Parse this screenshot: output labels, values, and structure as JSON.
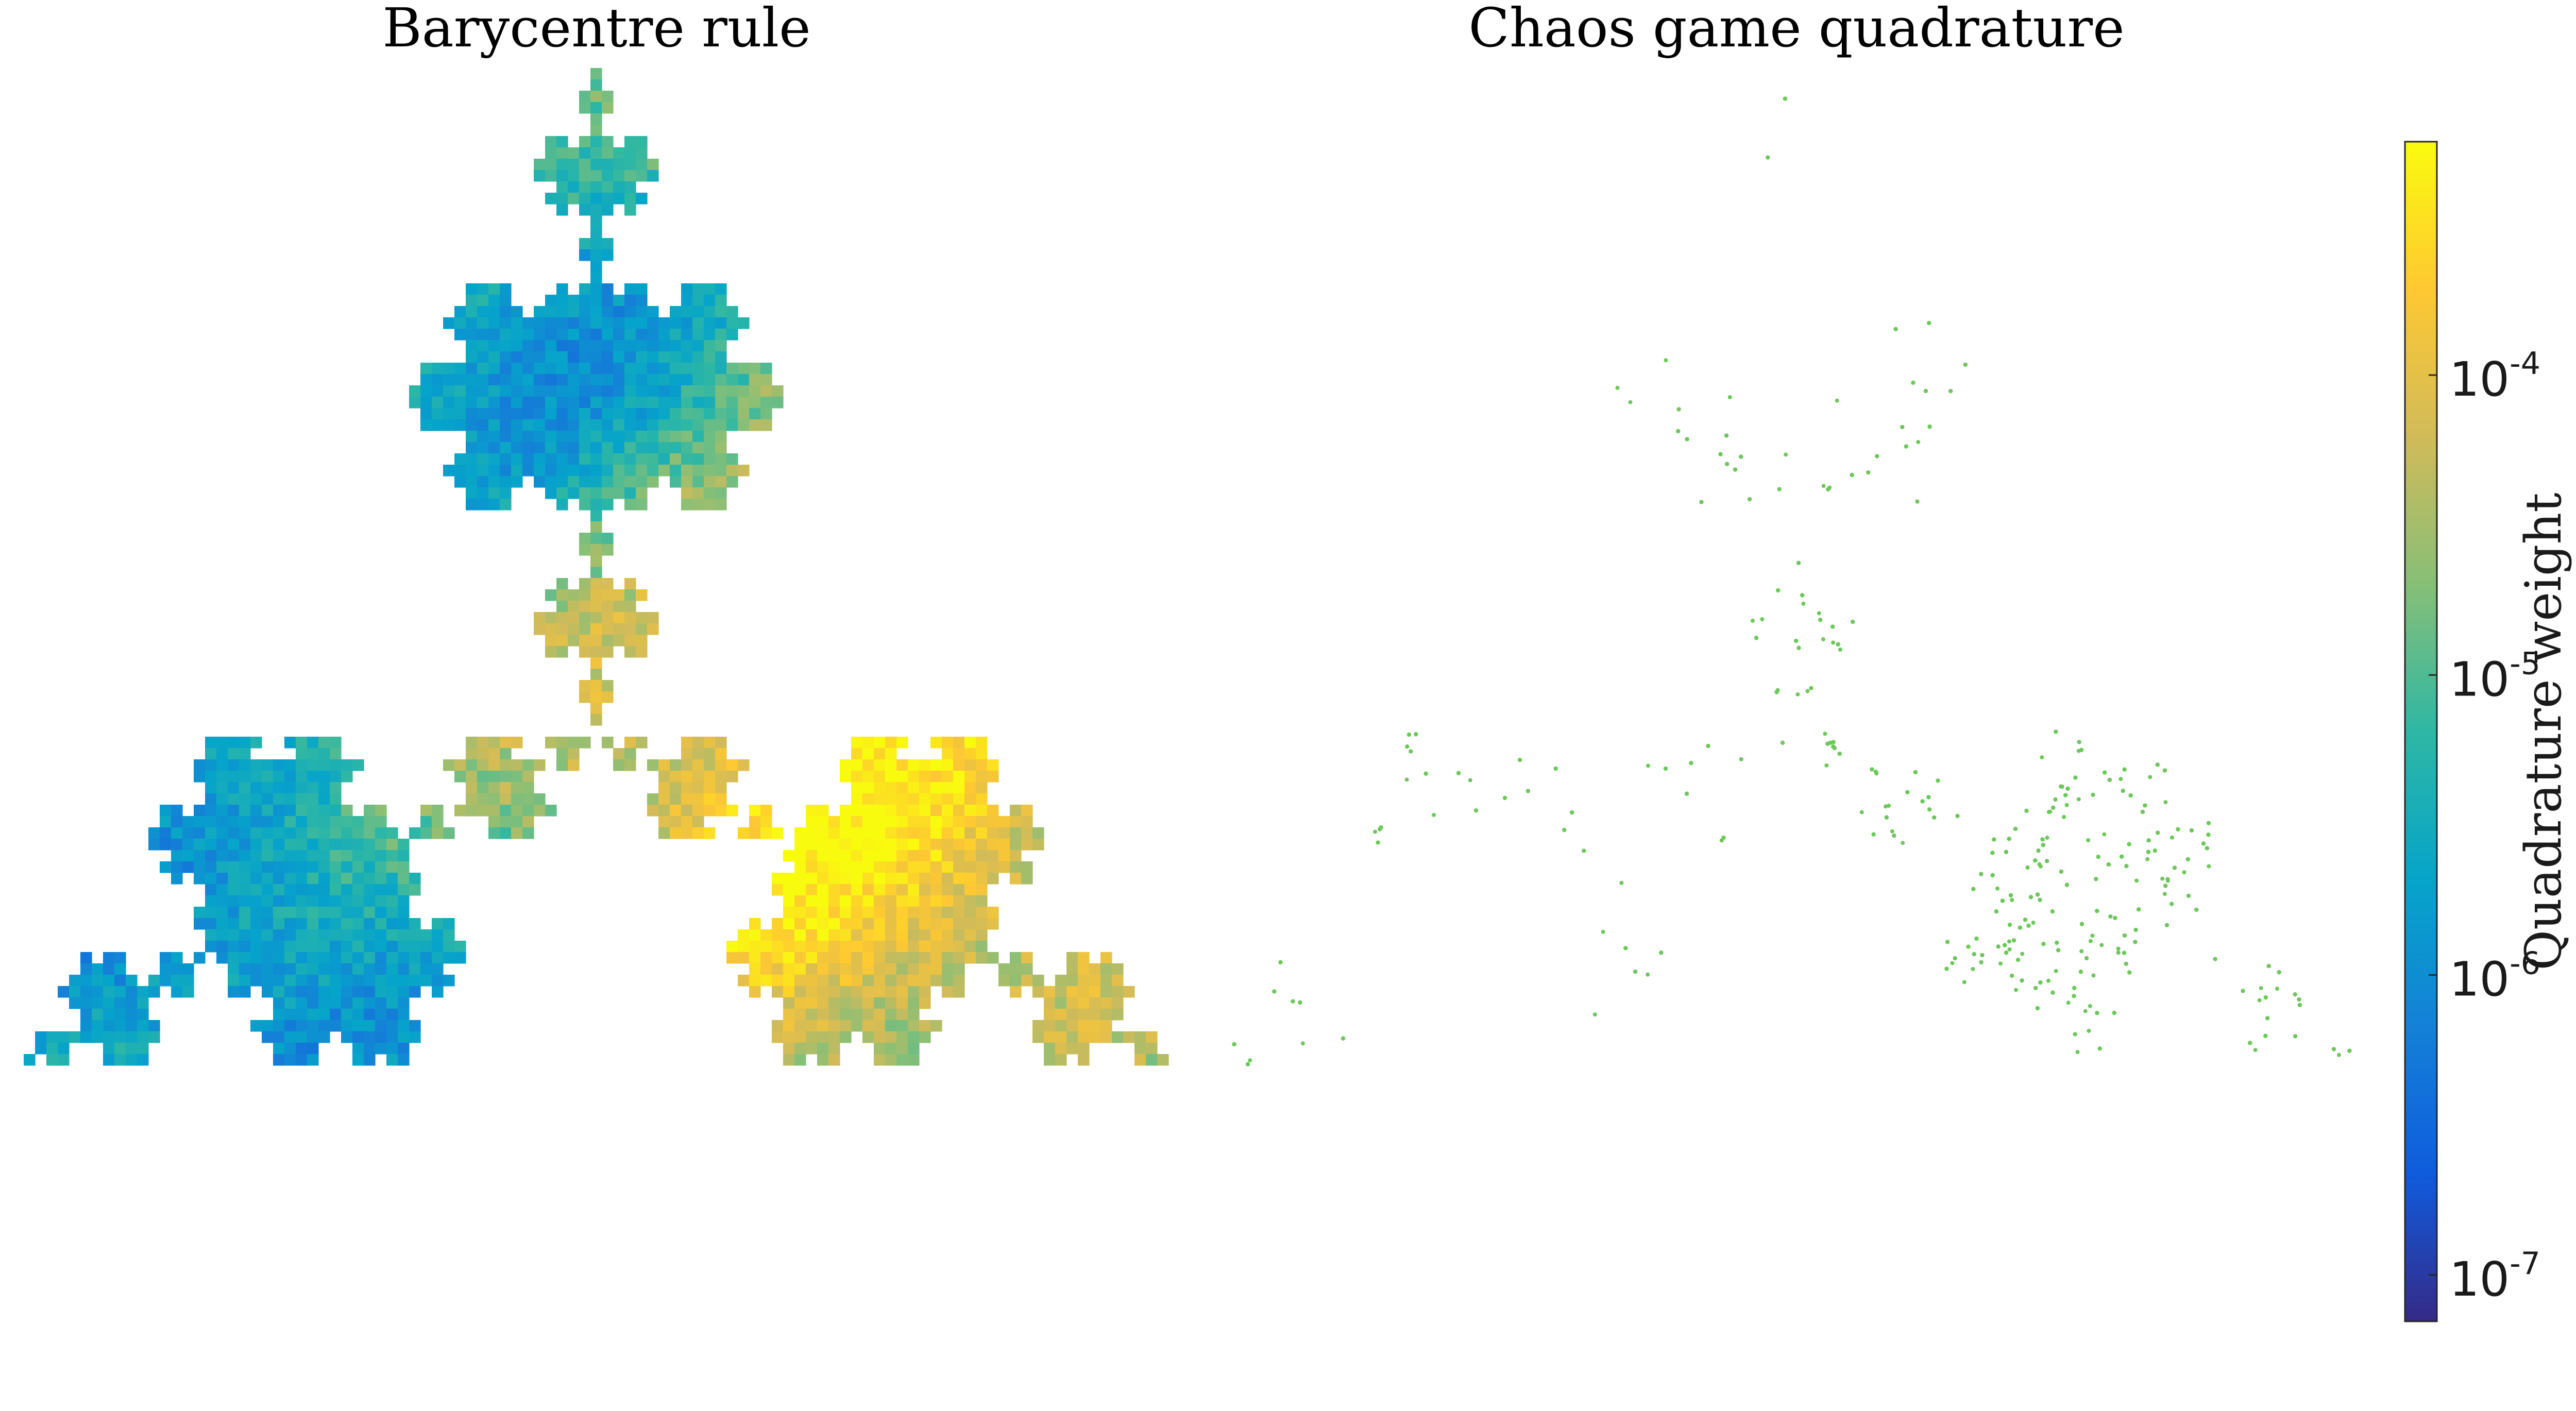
{
  "chart_data": [
    {
      "type": "heatmap",
      "title": "Barycentre rule",
      "description_of_marks": "Koch snowflake attractor tiled with small cells coloured by quadrature weight on a log colour scale",
      "colour_scale": "log",
      "colour_range": [
        7e-08,
        0.0006
      ]
    },
    {
      "type": "scatter",
      "title": "Chaos game quadrature",
      "point_color": "#6cc85a",
      "description_of_marks": "Uniformly weighted chaos-game points filling the same snowflake attractor"
    }
  ],
  "colorbar": {
    "label": "Quadrature weight",
    "scale": "log",
    "range": [
      7e-08,
      0.0006
    ],
    "colormap": "parula",
    "ticks": [
      {
        "value": 0.0001,
        "base": "10",
        "exponent": "-4"
      },
      {
        "value": 1e-05,
        "base": "10",
        "exponent": "-5"
      },
      {
        "value": 1e-06,
        "base": "10",
        "exponent": "-6"
      },
      {
        "value": 1e-07,
        "base": "10",
        "exponent": "-7"
      }
    ]
  }
}
